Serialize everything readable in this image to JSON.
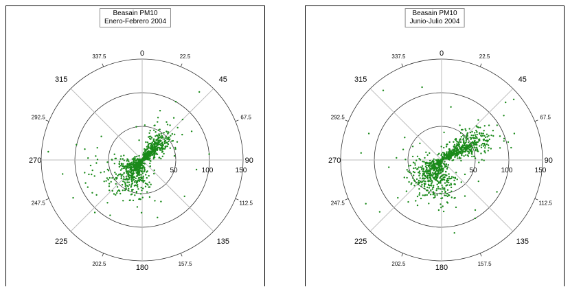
{
  "chart_data": [
    {
      "type": "scatter",
      "subtype": "polar",
      "title": "Beasain PM10",
      "subtitle": "Enero-Febrero 2004",
      "angle_labels_major": [
        "0",
        "45",
        "90",
        "135",
        "180",
        "225",
        "270",
        "315"
      ],
      "angle_labels_minor": [
        "22.5",
        "67.5",
        "112.5",
        "157.5",
        "202.5",
        "247.5",
        "292.5",
        "337.5"
      ],
      "radial_ticks": [
        50,
        100,
        150
      ],
      "rlim": [
        0,
        150
      ],
      "point_color": "#1a8a1a",
      "clusters": [
        {
          "angle_deg": 225,
          "radius": 10,
          "sd_r": 14,
          "sd_a": 28,
          "n": 420
        },
        {
          "angle_deg": 45,
          "radius": 28,
          "sd_r": 18,
          "sd_a": 14,
          "n": 330
        },
        {
          "angle_deg": 200,
          "radius": 30,
          "sd_r": 20,
          "sd_a": 22,
          "n": 170
        },
        {
          "angle_deg": 250,
          "radius": 45,
          "sd_r": 30,
          "sd_a": 22,
          "n": 70
        }
      ],
      "outliers": [
        {
          "angle_deg": 40,
          "radius": 132
        },
        {
          "angle_deg": 30,
          "radius": 100
        },
        {
          "angle_deg": 20,
          "radius": 78
        },
        {
          "angle_deg": 60,
          "radius": 85
        },
        {
          "angle_deg": 85,
          "radius": 100
        },
        {
          "angle_deg": 100,
          "radius": 82
        },
        {
          "angle_deg": 275,
          "radius": 140
        },
        {
          "angle_deg": 260,
          "radius": 120
        },
        {
          "angle_deg": 222,
          "radius": 105
        },
        {
          "angle_deg": 210,
          "radius": 95
        },
        {
          "angle_deg": 300,
          "radius": 70
        },
        {
          "angle_deg": 350,
          "radius": 50
        }
      ]
    },
    {
      "type": "scatter",
      "subtype": "polar",
      "title": "Beasain PM10",
      "subtitle": "Junio-Julio 2004",
      "angle_labels_major": [
        "0",
        "45",
        "90",
        "135",
        "180",
        "225",
        "270",
        "315"
      ],
      "angle_labels_minor": [
        "22.5",
        "67.5",
        "112.5",
        "157.5",
        "202.5",
        "247.5",
        "292.5",
        "337.5"
      ],
      "radial_ticks": [
        50,
        100,
        150
      ],
      "rlim": [
        0,
        150
      ],
      "point_color": "#1a8a1a",
      "clusters": [
        {
          "angle_deg": 60,
          "radius": 35,
          "sd_r": 25,
          "sd_a": 12,
          "n": 480
        },
        {
          "angle_deg": 220,
          "radius": 22,
          "sd_r": 20,
          "sd_a": 30,
          "n": 400
        },
        {
          "angle_deg": 180,
          "radius": 30,
          "sd_r": 22,
          "sd_a": 25,
          "n": 150
        }
      ],
      "outliers": [
        {
          "angle_deg": 50,
          "radius": 140
        },
        {
          "angle_deg": 48,
          "radius": 128
        },
        {
          "angle_deg": 70,
          "radius": 115
        },
        {
          "angle_deg": 80,
          "radius": 105
        },
        {
          "angle_deg": 345,
          "radius": 112
        },
        {
          "angle_deg": 320,
          "radius": 135
        },
        {
          "angle_deg": 290,
          "radius": 115
        },
        {
          "angle_deg": 275,
          "radius": 120
        },
        {
          "angle_deg": 240,
          "radius": 130
        },
        {
          "angle_deg": 230,
          "radius": 120
        },
        {
          "angle_deg": 170,
          "radius": 110
        },
        {
          "angle_deg": 150,
          "radius": 100
        },
        {
          "angle_deg": 120,
          "radius": 95
        },
        {
          "angle_deg": 10,
          "radius": 80
        }
      ]
    }
  ]
}
